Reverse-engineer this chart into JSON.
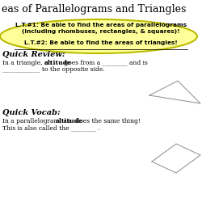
{
  "title": "eas of Parallelograms and Triangles",
  "title_fontsize": 9,
  "bg_color": "#ffffff",
  "lt1_line1": "L.T.#1: Be able to find the areas of parallelograms",
  "lt1_line2": "(including rhombuses, rectangles, & squares)!",
  "lt2_text": "L.T.#2: Be able to find the areas of triangles!",
  "quick_review_label": "Quick Review:",
  "qr_pre": "In a triangle, an ",
  "qr_bold": "altitude",
  "qr_post": " goes from a ________ and is",
  "qr_line2": "____________ to the opposite side.",
  "quick_vocab_label": "Quick Vocab:",
  "qv_pre": "In a parallelogram, an ",
  "qv_bold": "altitude",
  "qv_post": " does the same thing!",
  "qv_line2": "This is also called the ________ .",
  "ellipse_color": "#ffff99",
  "ellipse_edge": "#bbbb00"
}
